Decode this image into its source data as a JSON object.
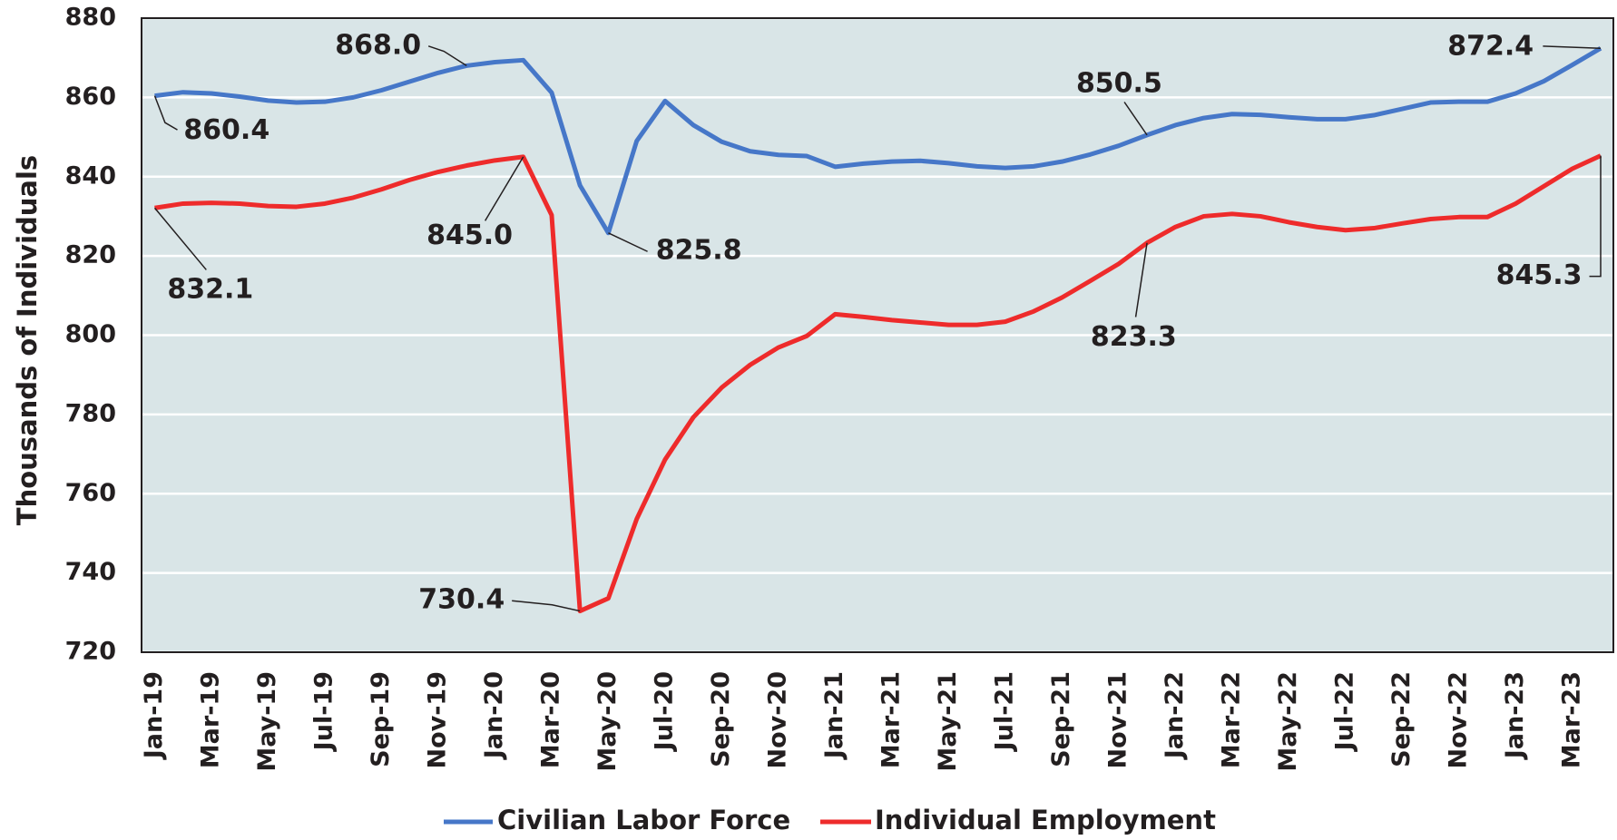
{
  "chart_data": {
    "type": "line",
    "y_label": "Thousands of Individuals",
    "categories": [
      "Jan-19",
      null,
      "Mar-19",
      null,
      "May-19",
      null,
      "Jul-19",
      null,
      "Sep-19",
      null,
      "Nov-19",
      null,
      "Jan-20",
      null,
      "Mar-20",
      null,
      "May-20",
      null,
      "Jul-20",
      null,
      "Sep-20",
      null,
      "Nov-20",
      null,
      "Jan-21",
      null,
      "Mar-21",
      null,
      "May-21",
      null,
      "Jul-21",
      null,
      "Sep-21",
      null,
      "Nov-21",
      null,
      "Jan-22",
      null,
      "Mar-22",
      null,
      "May-22",
      null,
      "Jul-22",
      null,
      "Sep-22",
      null,
      "Nov-22",
      null,
      "Jan-23",
      null,
      "Mar-23",
      null
    ],
    "series": [
      {
        "name": "Civilian Labor Force",
        "color": "#4677c8",
        "values": [
          860.4,
          861.3,
          861.0,
          860.2,
          859.2,
          858.7,
          858.9,
          860.0,
          861.8,
          864.0,
          866.2,
          868.0,
          868.9,
          869.4,
          861.2,
          837.8,
          825.8,
          849.0,
          859.1,
          853.0,
          848.8,
          846.4,
          845.5,
          845.2,
          842.5,
          843.3,
          843.8,
          844.0,
          843.4,
          842.6,
          842.2,
          842.6,
          843.8,
          845.6,
          847.8,
          850.5,
          853.0,
          854.8,
          855.8,
          855.6,
          855.0,
          854.5,
          854.5,
          855.5,
          857.1,
          858.7,
          858.9,
          858.9,
          861.0,
          864.1,
          868.2,
          872.4
        ],
        "value_labels": [
          "860.4",
          null,
          null,
          null,
          null,
          null,
          null,
          null,
          null,
          null,
          null,
          "868.0",
          null,
          null,
          null,
          null,
          "825.8",
          null,
          null,
          null,
          null,
          null,
          null,
          null,
          null,
          null,
          null,
          null,
          null,
          null,
          null,
          null,
          null,
          null,
          null,
          "850.5",
          null,
          null,
          null,
          null,
          null,
          null,
          null,
          null,
          null,
          null,
          null,
          null,
          null,
          null,
          null,
          "872.4"
        ]
      },
      {
        "name": "Individual Employment",
        "color": "#ee2b2b",
        "values": [
          832.1,
          833.2,
          833.4,
          833.2,
          832.6,
          832.4,
          833.2,
          834.7,
          836.8,
          839.2,
          841.2,
          842.8,
          844.1,
          845.0,
          830.3,
          730.4,
          733.6,
          753.6,
          768.6,
          779.3,
          786.8,
          792.5,
          796.9,
          799.8,
          805.3,
          804.6,
          803.8,
          803.2,
          802.6,
          802.6,
          803.4,
          806.0,
          809.5,
          813.7,
          818.0,
          823.3,
          827.3,
          830.0,
          830.6,
          830.0,
          828.5,
          827.3,
          826.5,
          827.0,
          828.2,
          829.3,
          829.8,
          829.8,
          833.2,
          837.6,
          842.0,
          845.3
        ],
        "value_labels": [
          "832.1",
          null,
          null,
          null,
          null,
          null,
          null,
          null,
          null,
          null,
          null,
          null,
          null,
          "845.0",
          null,
          "730.4",
          null,
          null,
          null,
          null,
          null,
          null,
          null,
          null,
          null,
          null,
          null,
          null,
          null,
          null,
          null,
          null,
          null,
          null,
          null,
          "823.3",
          null,
          null,
          null,
          null,
          null,
          null,
          null,
          null,
          null,
          null,
          null,
          null,
          null,
          null,
          null,
          "845.3"
        ]
      }
    ],
    "ylim": [
      720,
      880
    ],
    "yticks": [
      720,
      740,
      760,
      780,
      800,
      820,
      840,
      860,
      880
    ],
    "grid": true
  }
}
